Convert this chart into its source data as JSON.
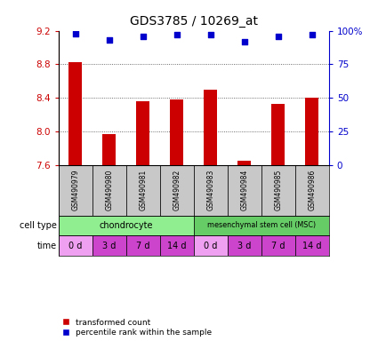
{
  "title": "GDS3785 / 10269_at",
  "samples": [
    "GSM490979",
    "GSM490980",
    "GSM490981",
    "GSM490982",
    "GSM490983",
    "GSM490984",
    "GSM490985",
    "GSM490986"
  ],
  "transformed_counts": [
    8.82,
    7.97,
    8.36,
    8.38,
    8.5,
    7.65,
    8.33,
    8.4
  ],
  "percentile_ranks": [
    98,
    93,
    96,
    97,
    97,
    92,
    96,
    97
  ],
  "ylim_left": [
    7.6,
    9.2
  ],
  "ylim_right": [
    0,
    100
  ],
  "yticks_left": [
    7.6,
    8.0,
    8.4,
    8.8,
    9.2
  ],
  "yticks_right": [
    0,
    25,
    50,
    75,
    100
  ],
  "ytick_labels_right": [
    "0",
    "25",
    "50",
    "75",
    "100%"
  ],
  "time_labels": [
    "0 d",
    "3 d",
    "7 d",
    "14 d",
    "0 d",
    "3 d",
    "7 d",
    "14 d"
  ],
  "time_colors": [
    "#f0a0f0",
    "#cc44cc",
    "#cc44cc",
    "#cc44cc",
    "#f0a0f0",
    "#cc44cc",
    "#cc44cc",
    "#cc44cc"
  ],
  "chondrocyte_color": "#90EE90",
  "msc_color": "#66CC66",
  "bar_color": "#cc0000",
  "scatter_color": "#0000cc",
  "axis_color_left": "#cc0000",
  "axis_color_right": "#0000cc",
  "legend_bar_label": "transformed count",
  "legend_scatter_label": "percentile rank within the sample",
  "sample_bg_color": "#c8c8c8"
}
